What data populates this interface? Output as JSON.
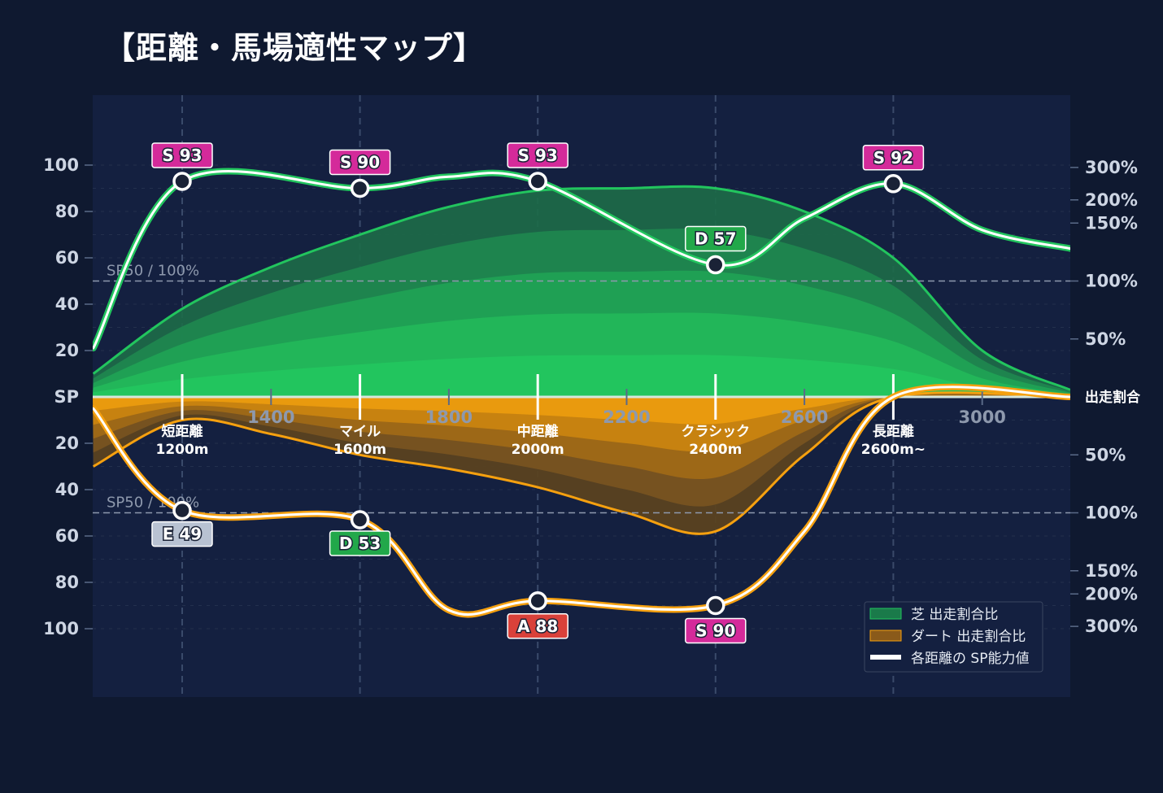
{
  "title": "【距離・馬場適性マップ】",
  "chart_data": {
    "type": "area",
    "title": "【距離・馬場適性マップ】",
    "x_ticks": [
      "1400",
      "1800",
      "2200",
      "2600",
      "3000"
    ],
    "y_left_ticks_top": [
      "100",
      "80",
      "60",
      "40",
      "20"
    ],
    "y_left_ticks_bottom": [
      "20",
      "40",
      "60",
      "80",
      "100"
    ],
    "y_left_zero_label": "SP",
    "y_right_ticks_top": [
      "300%",
      "200%",
      "150%",
      "100%",
      "50%"
    ],
    "y_right_ticks_bottom": [
      "50%",
      "100%",
      "150%",
      "200%",
      "300%"
    ],
    "y_right_zero_label": "出走割合",
    "reference_line_label": "SP50 / 100%",
    "categories": [
      {
        "label": "短距離",
        "sublabel": "1200m",
        "x": 1200
      },
      {
        "label": "マイル",
        "sublabel": "1600m",
        "x": 1600
      },
      {
        "label": "中距離",
        "sublabel": "2000m",
        "x": 2000
      },
      {
        "label": "クラシック",
        "sublabel": "2400m",
        "x": 2400
      },
      {
        "label": "長距離",
        "sublabel": "2600m~",
        "x": 2800
      }
    ],
    "turf_sp_points": [
      {
        "category": "短距離",
        "rank": "S",
        "value": 93,
        "color": "#d42a9a"
      },
      {
        "category": "マイル",
        "rank": "S",
        "value": 90,
        "color": "#d42a9a"
      },
      {
        "category": "中距離",
        "rank": "S",
        "value": 93,
        "color": "#d42a9a"
      },
      {
        "category": "クラシック",
        "rank": "D",
        "value": 57,
        "color": "#22a84a"
      },
      {
        "category": "長距離",
        "rank": "S",
        "value": 92,
        "color": "#d42a9a"
      }
    ],
    "dirt_sp_points": [
      {
        "category": "短距離",
        "rank": "E",
        "value": 49,
        "color": "#b8c2d2"
      },
      {
        "category": "マイル",
        "rank": "D",
        "value": 53,
        "color": "#22a84a"
      },
      {
        "category": "中距離",
        "rank": "A",
        "value": 88,
        "color": "#d9413a"
      },
      {
        "category": "クラシック",
        "rank": "S",
        "value": 90,
        "color": "#d42a9a"
      }
    ],
    "turf_sp_curve": [
      [
        1000,
        21
      ],
      [
        1200,
        93
      ],
      [
        1600,
        90
      ],
      [
        1800,
        95
      ],
      [
        2000,
        93
      ],
      [
        2400,
        57
      ],
      [
        2600,
        77
      ],
      [
        2800,
        92
      ],
      [
        3000,
        72
      ],
      [
        3200,
        64
      ]
    ],
    "dirt_sp_curve": [
      [
        1000,
        5
      ],
      [
        1200,
        49
      ],
      [
        1600,
        53
      ],
      [
        1800,
        92
      ],
      [
        2000,
        88
      ],
      [
        2400,
        90
      ],
      [
        2600,
        58
      ],
      [
        2800,
        0
      ],
      [
        3200,
        0
      ]
    ],
    "turf_ratio_curve": [
      [
        1000,
        10
      ],
      [
        1200,
        38
      ],
      [
        1400,
        56
      ],
      [
        1600,
        70
      ],
      [
        1800,
        82
      ],
      [
        2000,
        89
      ],
      [
        2200,
        90
      ],
      [
        2400,
        90
      ],
      [
        2600,
        80
      ],
      [
        2800,
        60
      ],
      [
        3000,
        20
      ],
      [
        3200,
        3
      ]
    ],
    "dirt_ratio_curve": [
      [
        1000,
        30
      ],
      [
        1200,
        10
      ],
      [
        1400,
        16
      ],
      [
        1600,
        25
      ],
      [
        1800,
        31
      ],
      [
        2000,
        39
      ],
      [
        2200,
        50
      ],
      [
        2400,
        58
      ],
      [
        2600,
        25
      ],
      [
        2800,
        0
      ],
      [
        3200,
        0
      ]
    ],
    "legend": [
      "芝 出走割合比",
      "ダート 出走割合比",
      "各距離の SP能力値"
    ],
    "colors": {
      "turf": "#22c55e",
      "dirt": "#f5a00f",
      "sp_line": "#ffffff",
      "background": "#0f1930",
      "plot_bg": "#142040"
    },
    "legend_position": "bottom-right",
    "grid": true
  }
}
